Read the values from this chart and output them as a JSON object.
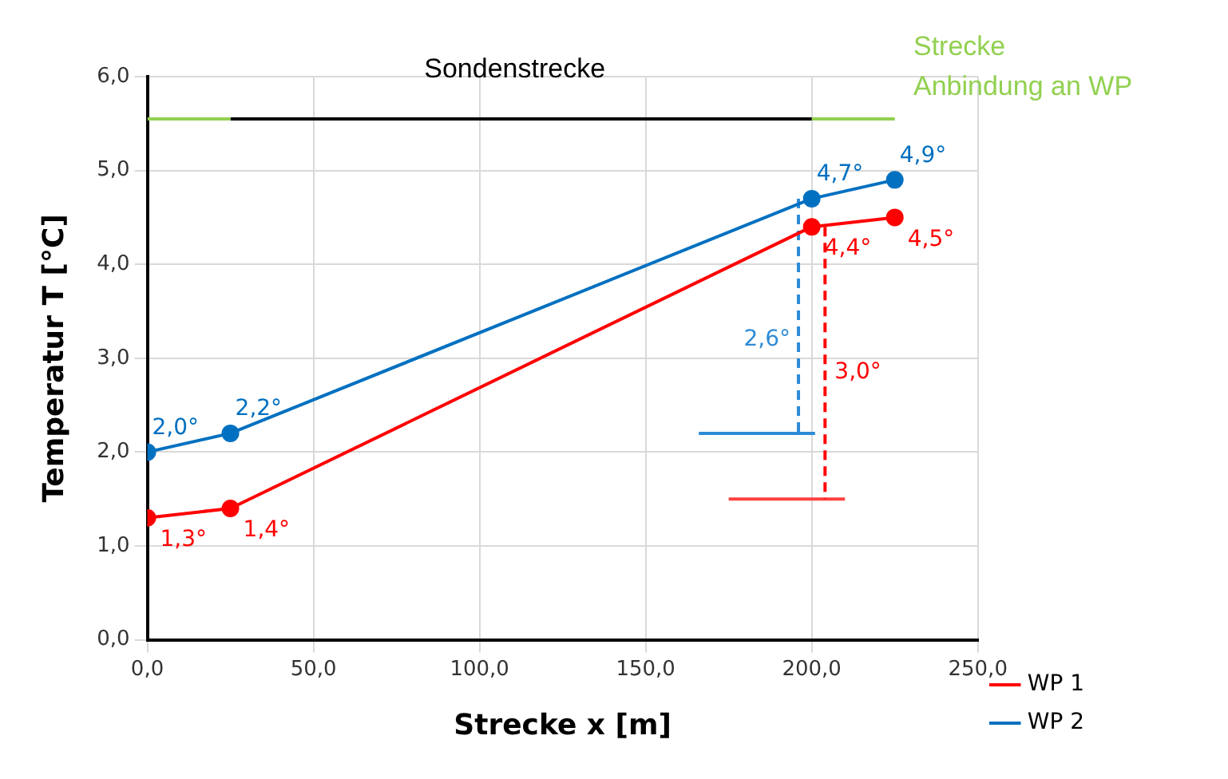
{
  "chart_data": {
    "type": "line",
    "xlabel": "Strecke x [m]",
    "ylabel": "Temperatur T [°C]",
    "xlim": [
      0,
      250
    ],
    "xticks": [
      {
        "value": 0,
        "label": "0,0"
      },
      {
        "value": 50,
        "label": "50,0"
      },
      {
        "value": 100,
        "label": "100,0"
      },
      {
        "value": 150,
        "label": "150,0"
      },
      {
        "value": 200,
        "label": "200,0"
      },
      {
        "value": 250,
        "label": "250,0"
      }
    ],
    "ylim": [
      0,
      6
    ],
    "yticks": [
      {
        "value": 0,
        "label": "0,0"
      },
      {
        "value": 1,
        "label": "1,0"
      },
      {
        "value": 2,
        "label": "2,0"
      },
      {
        "value": 3,
        "label": "3,0"
      },
      {
        "value": 4,
        "label": "4,0"
      },
      {
        "value": 5,
        "label": "5,0"
      },
      {
        "value": 6,
        "label": "6,0"
      }
    ],
    "grid": true,
    "legend": "bottom right",
    "marker": "circle",
    "line_style": "solid",
    "annotations": [
      "Sondenstrecke",
      "Strecke\nAnbindung an WP",
      {
        "text": "2,6°",
        "x": 196,
        "y": 3.2
      },
      {
        "text": "3,0°",
        "x": 204,
        "y": 2.85
      }
    ],
    "series": [
      {
        "name": "WP 1",
        "color": "#ff0000",
        "x": [
          0,
          25,
          200,
          225
        ],
        "values": [
          1.3,
          1.4,
          4.4,
          4.5
        ],
        "value_labels": [
          "1,3°",
          "1,4°",
          "4,4°",
          "4,5°"
        ]
      },
      {
        "name": "WP 2",
        "color": "#0070c0",
        "x": [
          0,
          25,
          200,
          225
        ],
        "values": [
          2.0,
          2.2,
          4.7,
          4.9
        ],
        "value_labels": [
          "2,0°",
          "2,2°",
          "4,7°",
          "4,9°"
        ]
      },
      {
        "color": "#2e8bd6",
        "x": [
          196,
          196
        ],
        "values": [
          4.7,
          2.2
        ],
        "marker": "none",
        "line_style": "dashed"
      },
      {
        "color": "#ff0000",
        "x": [
          204,
          204
        ],
        "values": [
          4.4,
          1.5
        ],
        "marker": "none",
        "line_style": "dashed"
      },
      {
        "color": "#2e8bd6",
        "x": [
          166,
          201
        ],
        "values": [
          2.2,
          2.2
        ],
        "marker": "none"
      },
      {
        "color": "#ff4040",
        "x": [
          175,
          210
        ],
        "values": [
          1.5,
          1.5
        ],
        "marker": "none"
      },
      {
        "color": "#92d050",
        "x": [
          0,
          25
        ],
        "values": [
          5.55,
          5.55
        ],
        "marker": "none"
      },
      {
        "color": "#000000",
        "x": [
          25,
          200
        ],
        "values": [
          5.55,
          5.55
        ],
        "marker": "none"
      },
      {
        "color": "#92d050",
        "x": [
          200,
          225
        ],
        "values": [
          5.55,
          5.55
        ],
        "marker": "none"
      }
    ]
  }
}
